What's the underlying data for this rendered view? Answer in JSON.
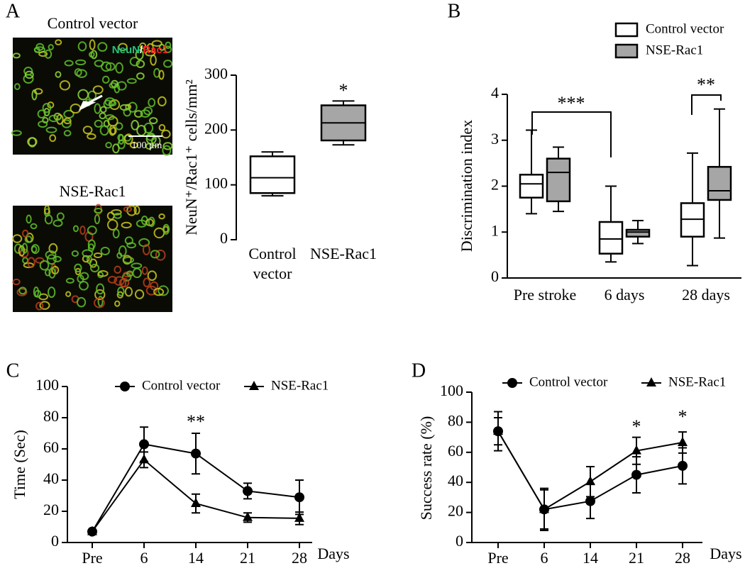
{
  "chart_data": [
    {
      "type": "box",
      "panel": "A",
      "images": [
        {
          "title": "Control vector",
          "stain": [
            "NeuN",
            "/",
            "Rac1"
          ],
          "scale_bar": "100 μm"
        },
        {
          "title": "NSE-Rac1"
        }
      ],
      "y_label": "NeuN⁺/Rac1⁺ cells/mm²",
      "categories": [
        [
          "Control",
          "vector"
        ],
        [
          "NSE-Rac1"
        ]
      ],
      "series": [
        {
          "colors": [
            "#ffffff",
            "#a6a6a6"
          ],
          "min": [
            80,
            173
          ],
          "q1": [
            85,
            181
          ],
          "median": [
            113,
            213
          ],
          "q3": [
            152,
            245
          ],
          "max": [
            160,
            253
          ]
        }
      ],
      "ylim": [
        0,
        300
      ],
      "yticks": [
        0,
        100,
        200,
        300
      ],
      "annotations": [
        "*"
      ]
    },
    {
      "type": "box",
      "panel": "B",
      "y_label": "Discrimination index",
      "categories": [
        "Pre stroke",
        "6 days",
        "28 days"
      ],
      "series": [
        {
          "name": "Control vector",
          "color": "#ffffff",
          "min": [
            1.4,
            0.35,
            0.27
          ],
          "q1": [
            1.75,
            0.53,
            0.9
          ],
          "median": [
            2.05,
            0.85,
            1.28
          ],
          "q3": [
            2.25,
            1.22,
            1.63
          ],
          "max": [
            3.22,
            2.0,
            2.72
          ]
        },
        {
          "name": "NSE-Rac1",
          "color": "#a6a6a6",
          "min": [
            1.45,
            0.75,
            0.87
          ],
          "q1": [
            1.67,
            0.9,
            1.7
          ],
          "median": [
            2.3,
            1.0,
            1.9
          ],
          "q3": [
            2.6,
            1.05,
            2.42
          ],
          "max": [
            2.85,
            1.25,
            3.68
          ]
        }
      ],
      "ylim": [
        0,
        4
      ],
      "yticks": [
        0,
        1,
        2,
        3,
        4
      ],
      "annotations": [
        "***",
        "**"
      ],
      "legend": "upper right"
    },
    {
      "type": "line",
      "panel": "C",
      "y_label": "Time (Sec)",
      "x_label": "Days",
      "categories": [
        "Pre",
        "6",
        "14",
        "21",
        "28"
      ],
      "series": [
        {
          "name": "Control vector",
          "marker": "circle",
          "color": "#000000",
          "values": [
            7,
            63,
            57,
            33,
            29
          ],
          "errors": [
            1,
            11,
            13,
            5,
            11
          ]
        },
        {
          "name": "NSE-Rac1",
          "marker": "triangle",
          "color": "#000000",
          "values": [
            7,
            53,
            25,
            16,
            15.5
          ],
          "errors": [
            1,
            5,
            6,
            3,
            4
          ]
        }
      ],
      "ylim": [
        0,
        100
      ],
      "yticks": [
        0,
        20,
        40,
        60,
        80,
        100
      ],
      "annotations": [
        "**"
      ],
      "legend": "top"
    },
    {
      "type": "line",
      "panel": "D",
      "y_label": "Success rate (%)",
      "x_label": "Days",
      "categories": [
        "Pre",
        "6",
        "14",
        "21",
        "28"
      ],
      "series": [
        {
          "name": "Control vector",
          "marker": "circle",
          "color": "#000000",
          "values": [
            74,
            22,
            27.5,
            45,
            51
          ],
          "errors": [
            9,
            14,
            11.5,
            12,
            12
          ]
        },
        {
          "name": "NSE-Rac1",
          "marker": "triangle",
          "color": "#000000",
          "values": [
            74,
            22,
            40.5,
            61,
            66.5
          ],
          "errors": [
            13,
            13,
            10,
            9,
            7
          ]
        }
      ],
      "ylim": [
        0,
        100
      ],
      "yticks": [
        0,
        20,
        40,
        60,
        80,
        100
      ],
      "annotations": [
        "*",
        "*"
      ],
      "legend": "top"
    }
  ]
}
